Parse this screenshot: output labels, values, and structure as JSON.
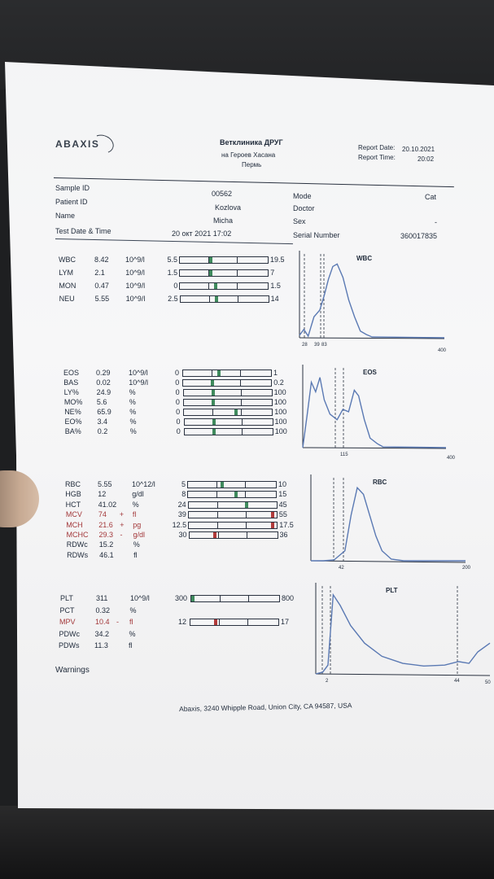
{
  "header": {
    "logo": "ABAXIS",
    "clinic_name": "Ветклиника ДРУГ",
    "clinic_address": "на Героев Хасана",
    "clinic_city": "Пермь",
    "report_date_label": "Report Date:",
    "report_date": "20.10.2021",
    "report_time_label": "Report Time:",
    "report_time": "20:02"
  },
  "patient": {
    "sample_id_label": "Sample ID",
    "sample_id": "00562",
    "patient_id_label": "Patient ID",
    "patient_id": "Kozlova",
    "name_label": "Name",
    "name": "Micha",
    "datetime_label": "Test Date & Time",
    "datetime": "20 окт 2021 17:02",
    "mode_label": "Mode",
    "mode": "Cat",
    "doctor_label": "Doctor",
    "doctor": "",
    "sex_label": "Sex",
    "sex": "-",
    "serial_label": "Serial Number",
    "serial": "360017835"
  },
  "wbc_rows": [
    {
      "name": "WBC",
      "value": "8.42",
      "flag": "",
      "unit": "10^9/l",
      "low": "5.5",
      "high": "19.5",
      "pos": 0.35,
      "alert": false
    },
    {
      "name": "LYM",
      "value": "2.1",
      "flag": "",
      "unit": "10^9/l",
      "low": "1.5",
      "high": "7",
      "pos": 0.35,
      "alert": false
    },
    {
      "name": "MON",
      "value": "0.47",
      "flag": "",
      "unit": "10^9/l",
      "low": "0",
      "high": "1.5",
      "pos": 0.4,
      "alert": false
    },
    {
      "name": "NEU",
      "value": "5.55",
      "flag": "",
      "unit": "10^9/l",
      "low": "2.5",
      "high": "14",
      "pos": 0.4,
      "alert": false
    }
  ],
  "eos_rows": [
    {
      "name": "EOS",
      "value": "0.29",
      "flag": "",
      "unit": "10^9/l",
      "low": "0",
      "high": "1",
      "pos": 0.4,
      "alert": false
    },
    {
      "name": "BAS",
      "value": "0.02",
      "flag": "",
      "unit": "10^9/l",
      "low": "0",
      "high": "0.2",
      "pos": 0.33,
      "alert": false
    },
    {
      "name": "LY%",
      "value": "24.9",
      "flag": "",
      "unit": "%",
      "low": "0",
      "high": "100",
      "pos": 0.33,
      "alert": false
    },
    {
      "name": "MO%",
      "value": "5.6",
      "flag": "",
      "unit": "%",
      "low": "0",
      "high": "100",
      "pos": 0.33,
      "alert": false
    },
    {
      "name": "NE%",
      "value": "65.9",
      "flag": "",
      "unit": "%",
      "low": "0",
      "high": "100",
      "pos": 0.6,
      "alert": false
    },
    {
      "name": "EO%",
      "value": "3.4",
      "flag": "",
      "unit": "%",
      "low": "0",
      "high": "100",
      "pos": 0.33,
      "alert": false
    },
    {
      "name": "BA%",
      "value": "0.2",
      "flag": "",
      "unit": "%",
      "low": "0",
      "high": "100",
      "pos": 0.33,
      "alert": false
    }
  ],
  "rbc_rows": [
    {
      "name": "RBC",
      "value": "5.55",
      "flag": "",
      "unit": "10^12/l",
      "low": "5",
      "high": "10",
      "pos": 0.38,
      "alert": false
    },
    {
      "name": "HGB",
      "value": "12",
      "flag": "",
      "unit": "g/dl",
      "low": "8",
      "high": "15",
      "pos": 0.55,
      "alert": false
    },
    {
      "name": "HCT",
      "value": "41.02",
      "flag": "",
      "unit": "%",
      "low": "24",
      "high": "45",
      "pos": 0.66,
      "alert": false
    },
    {
      "name": "MCV",
      "value": "74",
      "flag": "+",
      "unit": "fl",
      "low": "39",
      "high": "55",
      "pos": 0.97,
      "alert": true
    },
    {
      "name": "MCH",
      "value": "21.6",
      "flag": "+",
      "unit": "pg",
      "low": "12.5",
      "high": "17.5",
      "pos": 0.97,
      "alert": true
    },
    {
      "name": "MCHC",
      "value": "29.3",
      "flag": "-",
      "unit": "g/dl",
      "low": "30",
      "high": "36",
      "pos": 0.28,
      "alert": true
    },
    {
      "name": "RDWc",
      "value": "15.2",
      "flag": "",
      "unit": "%",
      "low": "",
      "high": "",
      "pos": null,
      "alert": false
    },
    {
      "name": "RDWs",
      "value": "46.1",
      "flag": "",
      "unit": "fl",
      "low": "",
      "high": "",
      "pos": null,
      "alert": false
    }
  ],
  "plt_rows": [
    {
      "name": "PLT",
      "value": "311",
      "flag": "",
      "unit": "10^9/l",
      "low": "300",
      "high": "800",
      "pos": 0.0,
      "alert": false
    },
    {
      "name": "PCT",
      "value": "0.32",
      "flag": "",
      "unit": "%",
      "low": "",
      "high": "",
      "pos": null,
      "alert": false
    },
    {
      "name": "MPV",
      "value": "10.4",
      "flag": "-",
      "unit": "fl",
      "low": "12",
      "high": "17",
      "pos": 0.28,
      "alert": true
    },
    {
      "name": "PDWc",
      "value": "34.2",
      "flag": "",
      "unit": "%",
      "low": "",
      "high": "",
      "pos": null,
      "alert": false
    },
    {
      "name": "PDWs",
      "value": "11.3",
      "flag": "",
      "unit": "fl",
      "low": "",
      "high": "",
      "pos": null,
      "alert": false
    }
  ],
  "charts": {
    "wbc": {
      "title": "WBC",
      "ticks": [
        "28",
        "39",
        "83"
      ],
      "xmax": "400"
    },
    "eos": {
      "title": "EOS",
      "ticks": [
        "115"
      ],
      "xmax": "400"
    },
    "rbc": {
      "title": "RBC",
      "ticks": [
        "42"
      ],
      "xmax": "200"
    },
    "plt": {
      "title": "PLT",
      "ticks": [
        "2",
        "44"
      ],
      "xmax": "50"
    }
  },
  "warnings_label": "Warnings",
  "footer": "Abaxis, 3240 Whipple Road, Union City, CA 94587, USA",
  "colors": {
    "curve": "#5a79b3",
    "normal_mark": "#3f8a5d",
    "alert": "#a3383a",
    "ink": "#1f2a3a"
  }
}
